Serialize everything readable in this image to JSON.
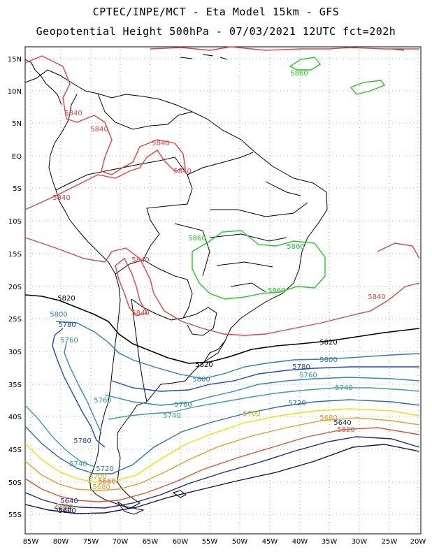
{
  "header": {
    "line1": "CPTEC/INPE/MCT -  Eta Model 15km - GFS",
    "line2": "Geopotential Height 500hPa - 07/03/2021 12UTC fct=202h"
  },
  "axes": {
    "lat_labels": [
      "15N",
      "10N",
      "5N",
      "EQ",
      "5S",
      "10S",
      "15S",
      "20S",
      "25S",
      "30S",
      "35S",
      "40S",
      "45S",
      "50S",
      "55S"
    ],
    "lon_labels": [
      "85W",
      "80W",
      "75W",
      "70W",
      "65W",
      "60W",
      "55W",
      "50W",
      "45W",
      "40W",
      "35W",
      "30W",
      "25W",
      "20W"
    ],
    "lat_range": [
      17,
      -58
    ],
    "lon_range": [
      -86,
      -20
    ],
    "grid": "dotted"
  },
  "colors": {
    "c5860": "#22cc22",
    "c5840": "#e84040",
    "c5820": "#000000",
    "c5800": "#2a7fb0",
    "c5780": "#1a44e0",
    "c5760": "#2a8ab8",
    "c5740": "#3aa0a8",
    "c5720": "#2a70b0",
    "c5700": "#f0e000",
    "c5680": "#e0a020",
    "c5660": "#e85030",
    "c5640": "#1a2a8a",
    "c5620": "#0a1450",
    "coast": "#000000"
  },
  "contour_labels": [
    {
      "text": "5860",
      "color": "#22cc22"
    },
    {
      "text": "5860",
      "color": "#22cc22"
    },
    {
      "text": "5860",
      "color": "#22cc22"
    },
    {
      "text": "5860",
      "color": "#22cc22"
    },
    {
      "text": "5840",
      "color": "#e84040"
    },
    {
      "text": "5840",
      "color": "#e84040"
    },
    {
      "text": "5840",
      "color": "#e84040"
    },
    {
      "text": "5840",
      "color": "#e84040"
    },
    {
      "text": "5840",
      "color": "#e84040"
    },
    {
      "text": "5840",
      "color": "#e84040"
    },
    {
      "text": "5840",
      "color": "#e84040"
    },
    {
      "text": "5840",
      "color": "#e84040"
    },
    {
      "text": "5820",
      "color": "#000000"
    },
    {
      "text": "5820",
      "color": "#000000"
    },
    {
      "text": "5820",
      "color": "#000000"
    },
    {
      "text": "5800",
      "color": "#2a7fb0"
    },
    {
      "text": "5800",
      "color": "#2a7fb0"
    },
    {
      "text": "5800",
      "color": "#2a7fb0"
    },
    {
      "text": "5780",
      "color": "#1a44e0"
    },
    {
      "text": "5780",
      "color": "#1a44e0"
    },
    {
      "text": "5780",
      "color": "#1a44e0"
    },
    {
      "text": "5760",
      "color": "#2a8ab8"
    },
    {
      "text": "5760",
      "color": "#2a8ab8"
    },
    {
      "text": "5760",
      "color": "#2a8ab8"
    },
    {
      "text": "5760",
      "color": "#2a8ab8"
    },
    {
      "text": "5740",
      "color": "#3aa0a8"
    },
    {
      "text": "5740",
      "color": "#3aa0a8"
    },
    {
      "text": "5740",
      "color": "#3aa0a8"
    },
    {
      "text": "5720",
      "color": "#2a70b0"
    },
    {
      "text": "5720",
      "color": "#2a70b0"
    },
    {
      "text": "5700",
      "color": "#c8b400"
    },
    {
      "text": "5700",
      "color": "#c8b400"
    },
    {
      "text": "5680",
      "color": "#e0a020"
    },
    {
      "text": "5680",
      "color": "#e0a020"
    },
    {
      "text": "5680",
      "color": "#e0a020"
    },
    {
      "text": "5660",
      "color": "#e85030"
    },
    {
      "text": "5640",
      "color": "#1a2a8a"
    },
    {
      "text": "5640",
      "color": "#1a2a8a"
    },
    {
      "text": "5620",
      "color": "#0a1450"
    },
    {
      "text": "5820",
      "color": "#e85030"
    },
    {
      "text": "5600",
      "color": "#0a1450"
    }
  ]
}
